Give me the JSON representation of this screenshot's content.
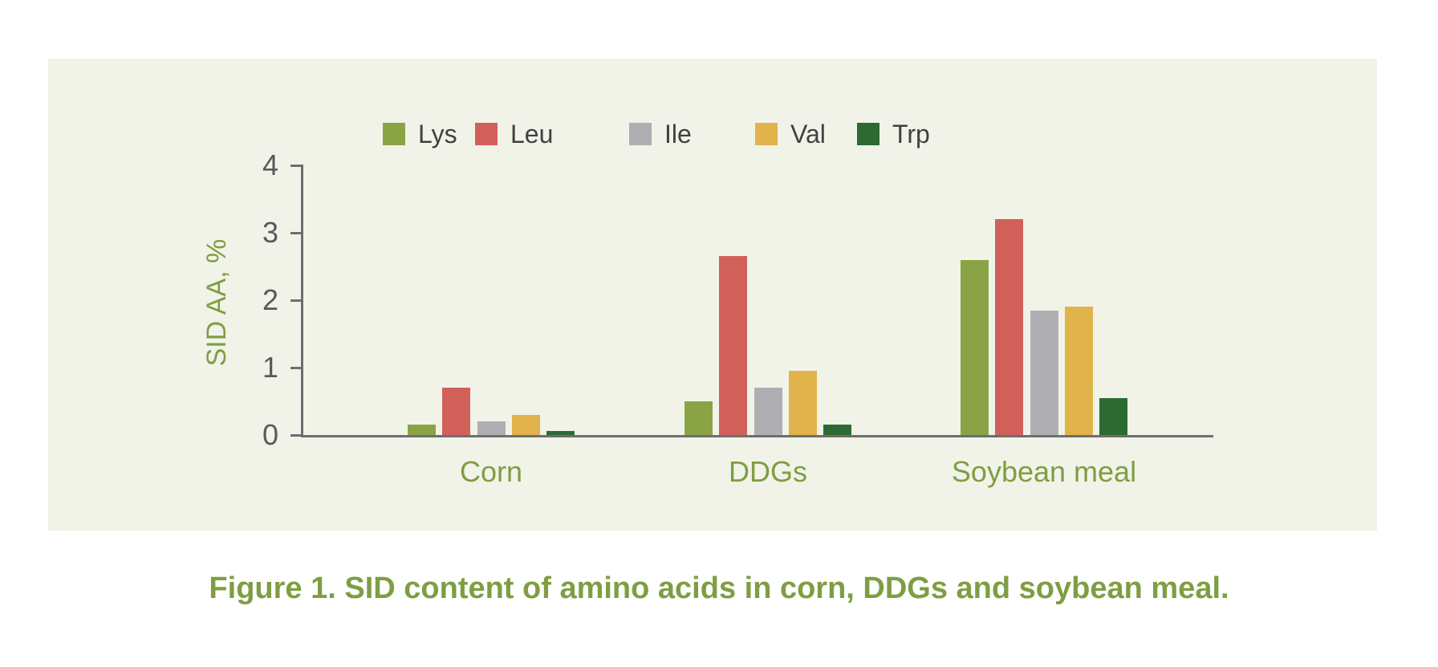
{
  "figure": {
    "caption": "Figure 1. SID content of amino acids in corn, DDGs and soybean meal."
  },
  "chart_data": {
    "type": "bar",
    "title": "",
    "xlabel": "",
    "ylabel": "SID AA, %",
    "ylim": [
      0,
      4
    ],
    "yticks": [
      0,
      1,
      2,
      3,
      4
    ],
    "grid": false,
    "legend_position": "top",
    "categories": [
      "Corn",
      "DDGs",
      "Soybean meal"
    ],
    "series": [
      {
        "name": "Lys",
        "color": "#8aa445",
        "values": [
          0.15,
          0.5,
          2.6
        ]
      },
      {
        "name": "Leu",
        "color": "#d2605a",
        "values": [
          0.7,
          2.65,
          3.2
        ]
      },
      {
        "name": "Ile",
        "color": "#afafb3",
        "values": [
          0.2,
          0.7,
          1.85
        ]
      },
      {
        "name": "Val",
        "color": "#e1b34b",
        "values": [
          0.3,
          0.95,
          1.9
        ]
      },
      {
        "name": "Trp",
        "color": "#2d6a33",
        "values": [
          0.06,
          0.15,
          0.55
        ]
      }
    ]
  },
  "colors": {
    "page_background": "#ffffff",
    "panel_background": "#f1f3e8",
    "axis": "#6d6e71",
    "tick_text": "#58595b",
    "legend_text": "#414042",
    "green_text": "#7e9e42"
  }
}
